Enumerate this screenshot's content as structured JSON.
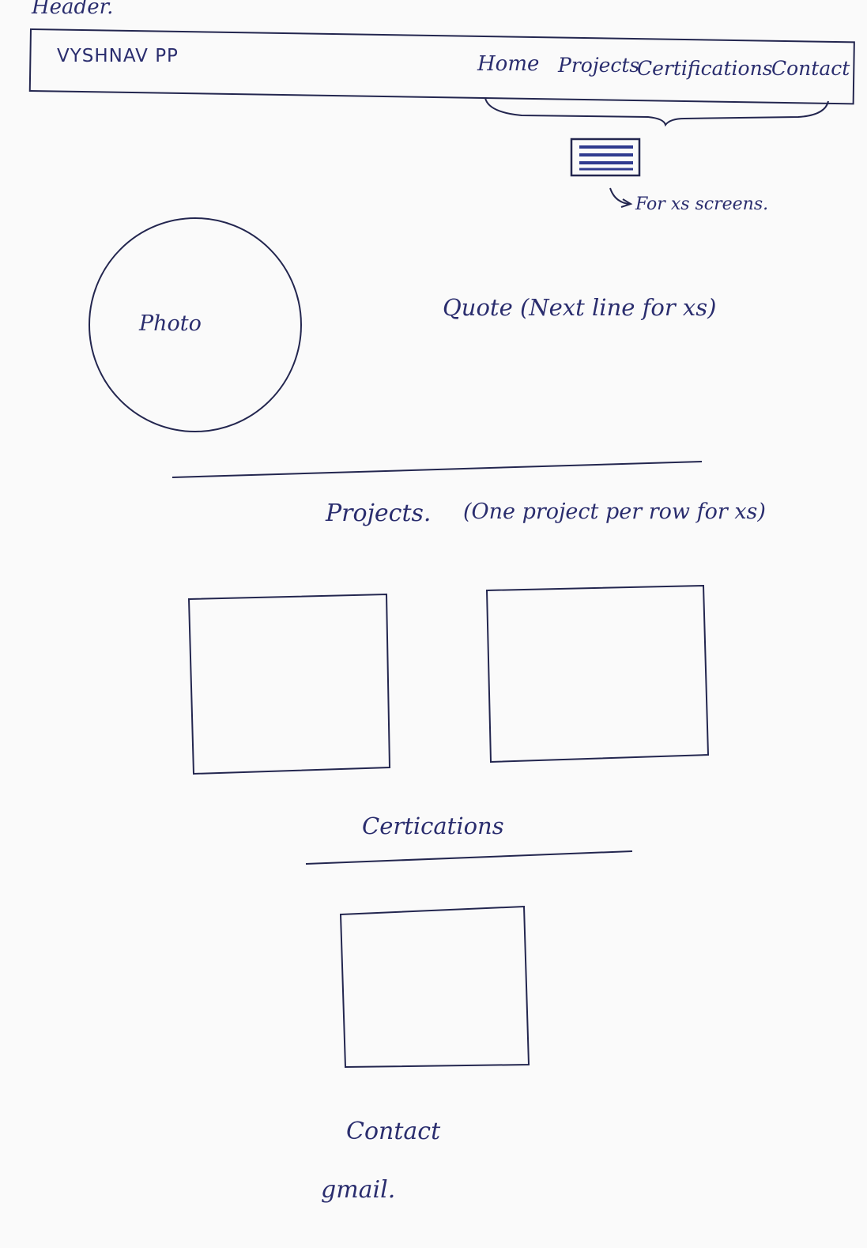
{
  "header_note": "Header.",
  "brand": "VYSHNAV PP",
  "nav": {
    "items": [
      "Home",
      "Projects",
      "Certifications",
      "Contact"
    ]
  },
  "hamburger_note": "For xs screens.",
  "hero": {
    "photo_label": "Photo",
    "quote_label": "Quote (Next line for xs)"
  },
  "projects": {
    "heading": "Projects.",
    "note": "(One project per row for xs)"
  },
  "certifications": {
    "heading": "Certications"
  },
  "contact": {
    "heading": "Contact",
    "gmail": "gmail."
  },
  "colors": {
    "ink": "#2a2d6e",
    "paper": "#fafafa"
  }
}
